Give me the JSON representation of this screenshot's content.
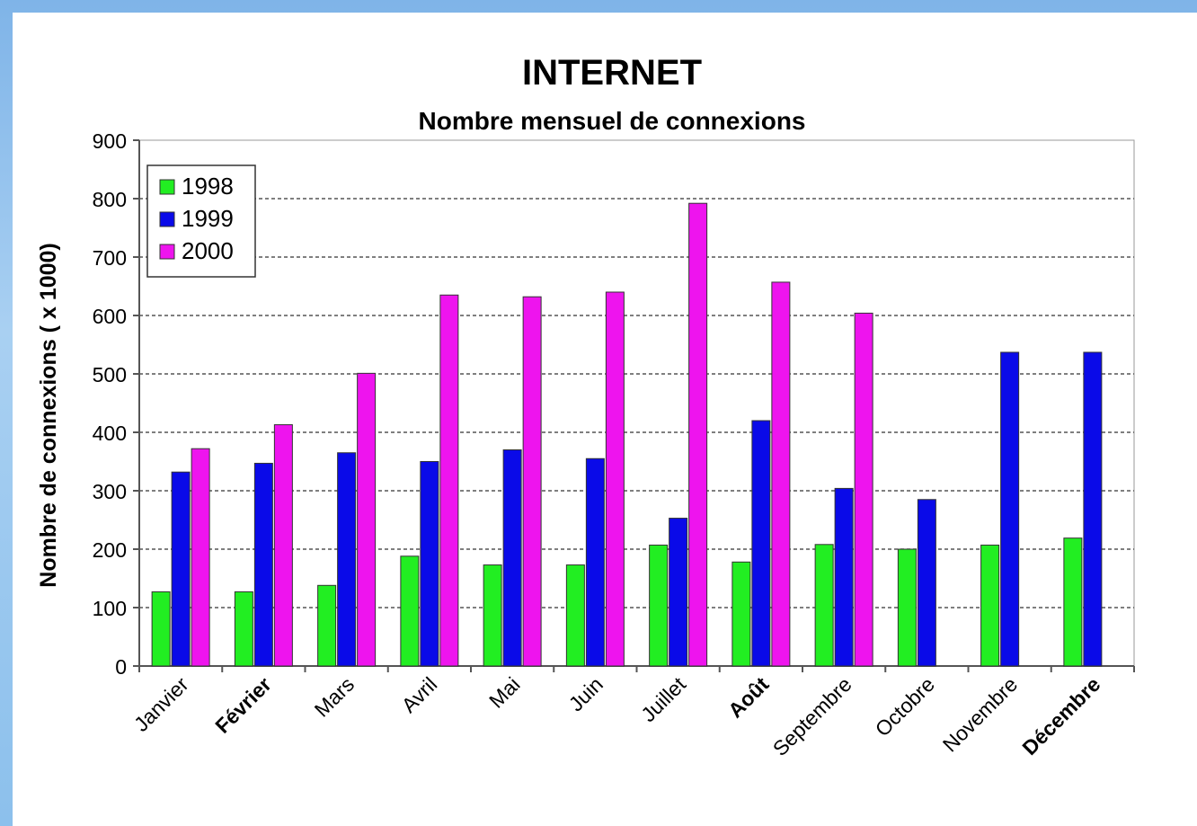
{
  "chart_data": {
    "type": "bar",
    "title": "INTERNET",
    "subtitle": "Nombre mensuel de connexions",
    "xlabel": "",
    "ylabel": "Nombre de connexions ( x 1000)",
    "ylim": [
      0,
      900
    ],
    "yticks": [
      "0",
      "100",
      "200",
      "300",
      "400",
      "500",
      "600",
      "700",
      "800",
      "900"
    ],
    "grid": "horizontal dashed",
    "legend_position": "top-left",
    "categories": [
      "Janvier",
      "Février",
      "Mars",
      "Avril",
      "Mai",
      "Juin",
      "Juillet",
      "Août",
      "Septembre",
      "Octobre",
      "Novembre",
      "Décembre"
    ],
    "bold_categories": [
      "Février",
      "Août",
      "Décembre"
    ],
    "series": [
      {
        "name": "1998",
        "color": "#22ee22",
        "values": [
          127,
          127,
          138,
          188,
          173,
          173,
          207,
          178,
          208,
          200,
          207,
          219
        ]
      },
      {
        "name": "1999",
        "color": "#0a0ae8",
        "values": [
          332,
          347,
          365,
          350,
          370,
          355,
          253,
          420,
          304,
          285,
          537,
          537
        ]
      },
      {
        "name": "2000",
        "color": "#ee14ee",
        "values": [
          372,
          413,
          501,
          635,
          632,
          640,
          792,
          657,
          604,
          null,
          null,
          null
        ]
      }
    ]
  }
}
